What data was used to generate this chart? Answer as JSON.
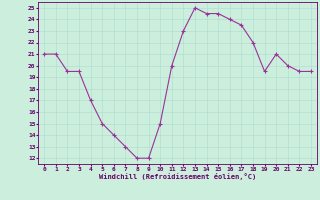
{
  "title": "",
  "xlabel": "Windchill (Refroidissement éolien,°C)",
  "ylabel": "",
  "bg_color": "#cceedd",
  "line_color": "#993399",
  "marker": "+",
  "markersize": 3,
  "linewidth": 0.8,
  "markeredgewidth": 0.8,
  "xlim": [
    -0.5,
    23.5
  ],
  "ylim": [
    11.5,
    25.5
  ],
  "xticks": [
    0,
    1,
    2,
    3,
    4,
    5,
    6,
    7,
    8,
    9,
    10,
    11,
    12,
    13,
    14,
    15,
    16,
    17,
    18,
    19,
    20,
    21,
    22,
    23
  ],
  "yticks": [
    12,
    13,
    14,
    15,
    16,
    17,
    18,
    19,
    20,
    21,
    22,
    23,
    24,
    25
  ],
  "hours": [
    0,
    1,
    2,
    3,
    4,
    5,
    6,
    7,
    8,
    9,
    10,
    11,
    12,
    13,
    14,
    15,
    16,
    17,
    18,
    19,
    20,
    21,
    22,
    23
  ],
  "temps": [
    21,
    21,
    19.5,
    19.5,
    17,
    15,
    14,
    13,
    12,
    12,
    15,
    20,
    23,
    25,
    24.5,
    24.5,
    24,
    23.5,
    22,
    19.5,
    21,
    20,
    19.5,
    19.5
  ],
  "label_color": "#660066",
  "grid_color": "#aaddcc",
  "tick_fontsize": 4.5,
  "xlabel_fontsize": 5.0
}
